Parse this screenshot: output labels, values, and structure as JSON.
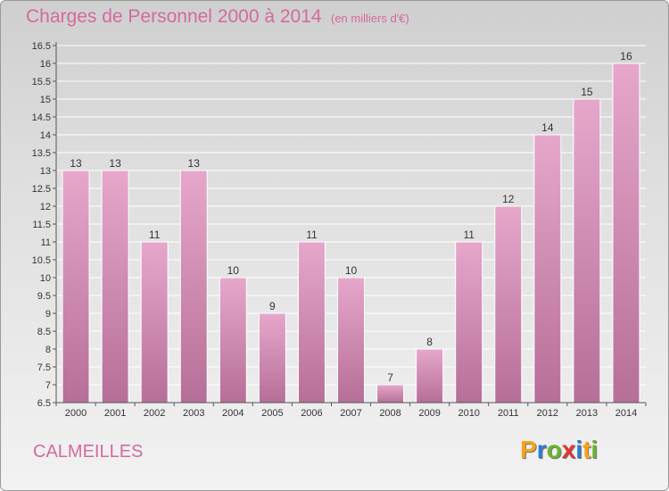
{
  "header": {
    "title": "Charges de Personnel 2000 à 2014",
    "subtitle": "(en milliers d'€)"
  },
  "footer": {
    "commune": "CALMEILLES",
    "brand_letters": [
      "P",
      "r",
      "o",
      "x",
      "i",
      "t",
      "i"
    ],
    "brand_colors": [
      "#f6a31c",
      "#2a7fd1",
      "#6ab42d",
      "#e6322d",
      "#2a7fd1",
      "#f6a31c",
      "#6ab42d"
    ]
  },
  "colors": {
    "bar_top": "#e6a7cb",
    "bar_bottom": "#b66f98",
    "axis": "#555555",
    "grid": "#ffffff",
    "title": "#d36aa0"
  },
  "chart_data": {
    "type": "bar",
    "title": "Charges de Personnel 2000 à 2014",
    "subtitle": "(en milliers d'€)",
    "xlabel": "",
    "ylabel": "",
    "categories": [
      "2000",
      "2001",
      "2002",
      "2003",
      "2004",
      "2005",
      "2006",
      "2007",
      "2008",
      "2009",
      "2010",
      "2011",
      "2012",
      "2013",
      "2014"
    ],
    "values": [
      13,
      13,
      11,
      13,
      10,
      9,
      11,
      10,
      7,
      8,
      11,
      12,
      14,
      15,
      16
    ],
    "data_labels": [
      "13",
      "13",
      "11",
      "13",
      "10",
      "9",
      "11",
      "10",
      "7",
      "8",
      "11",
      "12",
      "14",
      "15",
      "16"
    ],
    "ylim": [
      6.5,
      16.5
    ],
    "yticks": [
      6.5,
      7,
      7.5,
      8,
      8.5,
      9,
      9.5,
      10,
      10.5,
      11,
      11.5,
      12,
      12.5,
      13,
      13.5,
      14,
      14.5,
      15,
      15.5,
      16,
      16.5
    ],
    "ytick_labels": [
      "6.5",
      "7",
      "7.5",
      "8",
      "8.5",
      "9",
      "9.5",
      "10",
      "10.5",
      "11",
      "11.5",
      "12",
      "12.5",
      "13",
      "13.5",
      "14",
      "14.5",
      "15",
      "15.5",
      "16",
      "16.5"
    ],
    "grid": true
  }
}
